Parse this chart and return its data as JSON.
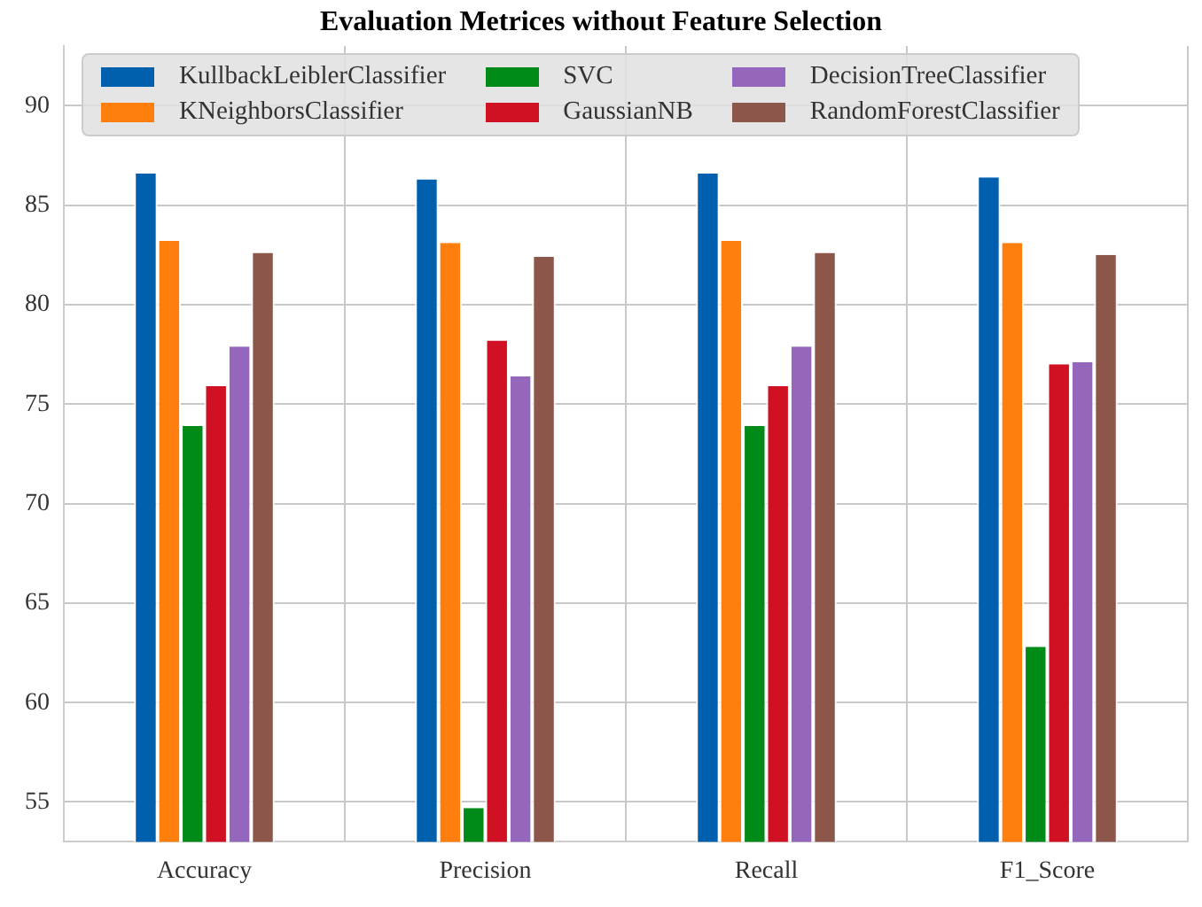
{
  "chart_data": {
    "type": "bar",
    "title": "Evaluation Metrices without Feature Selection",
    "categories": [
      "Accuracy",
      "Precision",
      "Recall",
      "F1_Score"
    ],
    "series": [
      {
        "name": "KullbackLeiblerClassifier",
        "color": "#0060ad",
        "values": [
          86.6,
          86.3,
          86.6,
          86.4
        ]
      },
      {
        "name": "KNeighborsClassifier",
        "color": "#ff7f0e",
        "values": [
          83.2,
          83.1,
          83.2,
          83.1
        ]
      },
      {
        "name": "SVC",
        "color": "#008a17",
        "values": [
          73.9,
          54.7,
          73.9,
          62.8
        ]
      },
      {
        "name": "GaussianNB",
        "color": "#d01023",
        "values": [
          75.9,
          78.2,
          75.9,
          77.0
        ]
      },
      {
        "name": "DecisionTreeClassifier",
        "color": "#9467bd",
        "values": [
          77.9,
          76.4,
          77.9,
          77.1
        ]
      },
      {
        "name": "RandomForestClassifier",
        "color": "#8c564b",
        "values": [
          82.6,
          82.4,
          82.6,
          82.5
        ]
      }
    ],
    "ylim": [
      53,
      93
    ],
    "yticks": [
      55,
      60,
      65,
      70,
      75,
      80,
      85,
      90
    ],
    "grid": true,
    "legend": "top"
  }
}
